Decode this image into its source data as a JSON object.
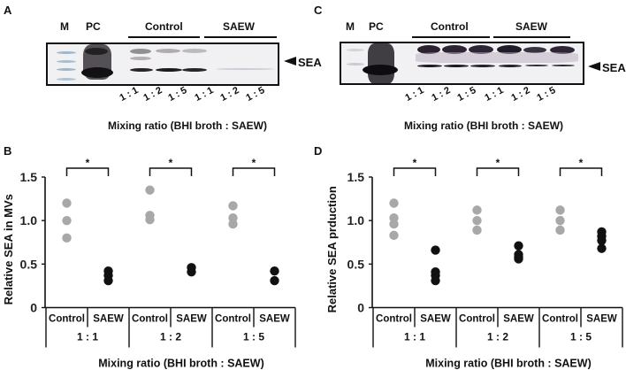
{
  "panels": {
    "A": {
      "letter": "A",
      "marker_label": "M",
      "pc_label": "PC",
      "group_control": "Control",
      "group_saew": "SAEW",
      "band_label": "SEA",
      "lanes": [
        "1 : 1",
        "1 : 2",
        "1 : 5",
        "1 : 1",
        "1 : 2",
        "1 : 5"
      ],
      "xlabel": "Mixing ratio (BHI broth : SAEW)"
    },
    "C": {
      "letter": "C",
      "marker_label": "M",
      "pc_label": "PC",
      "group_control": "Control",
      "group_saew": "SAEW",
      "band_label": "SEA",
      "lanes": [
        "1 : 1",
        "1 : 2",
        "1 : 5",
        "1 : 1",
        "1 : 2",
        "1 : 5"
      ],
      "xlabel": "Mixing ratio (BHI broth : SAEW)"
    },
    "B": {
      "letter": "B"
    },
    "D": {
      "letter": "D"
    }
  },
  "colors": {
    "control_point": "#a8a8a8",
    "saew_point": "#111111",
    "axis": "#111111"
  },
  "chart_data": [
    {
      "panel": "B",
      "type": "scatter",
      "title": "",
      "ylabel": "Relative SEA in MVs",
      "xlabel": "Mixing ratio (BHI broth : SAEW)",
      "ylim": [
        0,
        1.5
      ],
      "yticks": [
        "0",
        "0.5",
        "1.0",
        "1.5"
      ],
      "grid": false,
      "categories": [
        "1 : 1",
        "1 : 2",
        "1 : 5"
      ],
      "subcategories": [
        "Control",
        "SAEW"
      ],
      "significance": [
        "*",
        "*",
        "*"
      ],
      "series": [
        {
          "name": "Control",
          "color": "#a8a8a8",
          "values": [
            [
              1.2,
              1.0,
              0.8
            ],
            [
              1.35,
              1.06,
              1.01
            ],
            [
              1.17,
              1.03,
              0.96
            ]
          ]
        },
        {
          "name": "SAEW",
          "color": "#111111",
          "values": [
            [
              0.42,
              0.37,
              0.31
            ],
            [
              0.46,
              0.41
            ],
            [
              0.42,
              0.31
            ]
          ]
        }
      ]
    },
    {
      "panel": "D",
      "type": "scatter",
      "title": "",
      "ylabel": "Relative SEA prduction",
      "xlabel": "Mixing ratio (BHI broth : SAEW)",
      "ylim": [
        0,
        1.5
      ],
      "yticks": [
        "0",
        "0.5",
        "1.0",
        "1.5"
      ],
      "grid": false,
      "categories": [
        "1 : 1",
        "1 : 2",
        "1 : 5"
      ],
      "subcategories": [
        "Control",
        "SAEW"
      ],
      "significance": [
        "*",
        "*",
        "*"
      ],
      "series": [
        {
          "name": "Control",
          "color": "#a8a8a8",
          "values": [
            [
              1.2,
              1.03,
              0.96,
              0.83
            ],
            [
              1.12,
              1.0,
              0.89
            ],
            [
              1.12,
              1.0,
              0.89
            ]
          ]
        },
        {
          "name": "SAEW",
          "color": "#111111",
          "values": [
            [
              0.66,
              0.41,
              0.37,
              0.31
            ],
            [
              0.71,
              0.61,
              0.58,
              0.56
            ],
            [
              0.87,
              0.82,
              0.77,
              0.68
            ]
          ]
        }
      ]
    }
  ]
}
